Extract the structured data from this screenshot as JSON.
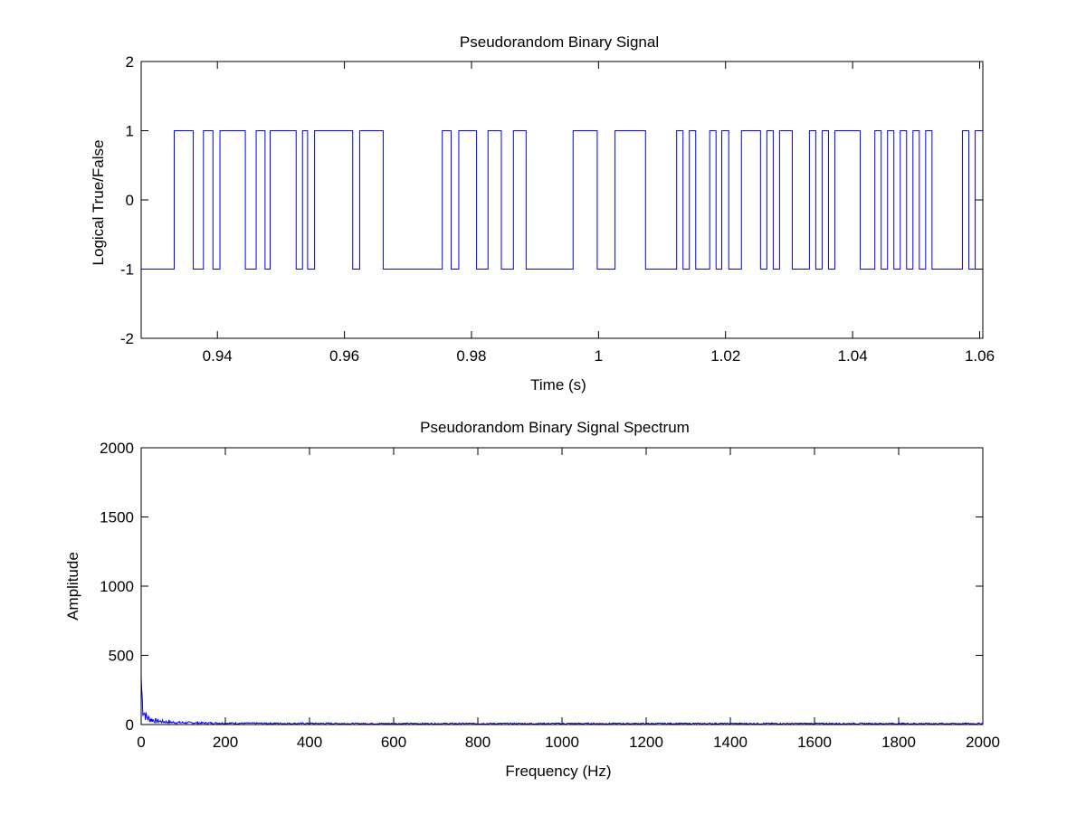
{
  "chart_data": [
    {
      "type": "line",
      "title": "Pseudorandom Binary Signal",
      "xlabel": "Time (s)",
      "ylabel": "Logical True/False",
      "xlim": [
        0.928,
        1.0605
      ],
      "ylim": [
        -2,
        2
      ],
      "xticks": [
        0.94,
        0.96,
        0.98,
        1,
        1.02,
        1.04,
        1.06
      ],
      "xtick_labels": [
        "0.94",
        "0.96",
        "0.98",
        "1",
        "1.02",
        "1.04",
        "1.06"
      ],
      "yticks": [
        -2,
        -1,
        0,
        1,
        2
      ],
      "ytick_labels": [
        "-2",
        "-1",
        "0",
        "1",
        "2"
      ],
      "line_color": "#0000ff",
      "series": [
        {
          "step": true,
          "initial_value": -1,
          "transitions": [
            [
              0.9332,
              1
            ],
            [
              0.9362,
              -1
            ],
            [
              0.9378,
              1
            ],
            [
              0.9393,
              -1
            ],
            [
              0.9404,
              1
            ],
            [
              0.9444,
              -1
            ],
            [
              0.9461,
              1
            ],
            [
              0.9475,
              -1
            ],
            [
              0.9483,
              1
            ],
            [
              0.9524,
              -1
            ],
            [
              0.9534,
              1
            ],
            [
              0.9542,
              -1
            ],
            [
              0.9553,
              1
            ],
            [
              0.9613,
              -1
            ],
            [
              0.9624,
              1
            ],
            [
              0.9661,
              -1
            ],
            [
              0.9754,
              1
            ],
            [
              0.9768,
              -1
            ],
            [
              0.978,
              1
            ],
            [
              0.9808,
              -1
            ],
            [
              0.9826,
              1
            ],
            [
              0.9847,
              -1
            ],
            [
              0.9866,
              1
            ],
            [
              0.9886,
              -1
            ],
            [
              0.996,
              1
            ],
            [
              0.9998,
              -1
            ],
            [
              1.0026,
              1
            ],
            [
              1.0074,
              -1
            ],
            [
              1.0123,
              1
            ],
            [
              1.0133,
              -1
            ],
            [
              1.0143,
              1
            ],
            [
              1.0153,
              -1
            ],
            [
              1.0175,
              1
            ],
            [
              1.0185,
              -1
            ],
            [
              1.0194,
              1
            ],
            [
              1.0205,
              -1
            ],
            [
              1.0225,
              1
            ],
            [
              1.0255,
              -1
            ],
            [
              1.0265,
              1
            ],
            [
              1.0275,
              -1
            ],
            [
              1.0285,
              1
            ],
            [
              1.0305,
              -1
            ],
            [
              1.0332,
              1
            ],
            [
              1.0342,
              -1
            ],
            [
              1.0352,
              1
            ],
            [
              1.0362,
              -1
            ],
            [
              1.0372,
              1
            ],
            [
              1.0412,
              -1
            ],
            [
              1.0435,
              1
            ],
            [
              1.0445,
              -1
            ],
            [
              1.0455,
              1
            ],
            [
              1.0465,
              -1
            ],
            [
              1.0475,
              1
            ],
            [
              1.0485,
              -1
            ],
            [
              1.0495,
              1
            ],
            [
              1.0505,
              -1
            ],
            [
              1.0515,
              1
            ],
            [
              1.0525,
              -1
            ],
            [
              1.0573,
              1
            ],
            [
              1.0583,
              -1
            ],
            [
              1.0593,
              1
            ]
          ]
        }
      ]
    },
    {
      "type": "line",
      "title": "Pseudorandom Binary Signal Spectrum",
      "xlabel": "Frequency (Hz)",
      "ylabel": "Amplitude",
      "xlim": [
        0,
        2000
      ],
      "ylim": [
        0,
        2000
      ],
      "xticks": [
        0,
        200,
        400,
        600,
        800,
        1000,
        1200,
        1400,
        1600,
        1800,
        2000
      ],
      "xtick_labels": [
        "0",
        "200",
        "400",
        "600",
        "800",
        "1000",
        "1200",
        "1400",
        "1600",
        "1800",
        "2000"
      ],
      "yticks": [
        0,
        500,
        1000,
        1500,
        2000
      ],
      "ytick_labels": [
        "0",
        "500",
        "1000",
        "1500",
        "2000"
      ],
      "line_color": "#0000ff",
      "series": [
        {
          "x": [
            0,
            1,
            2,
            3,
            4,
            6,
            8,
            10,
            12,
            15,
            18,
            22,
            26,
            30,
            35,
            40,
            45,
            50,
            55,
            60,
            70,
            80,
            90,
            100,
            120,
            140,
            160,
            180,
            200,
            250,
            300,
            350,
            400,
            450,
            500,
            600,
            700,
            800,
            900,
            1000,
            1100,
            1200,
            1300,
            1400,
            1500,
            1600,
            1700,
            1800,
            1900,
            2000
          ],
          "values": [
            350,
            300,
            240,
            180,
            140,
            110,
            90,
            75,
            65,
            55,
            48,
            42,
            38,
            34,
            30,
            28,
            26,
            24,
            22,
            21,
            19,
            17,
            16,
            15,
            14,
            13,
            12,
            12,
            11,
            10,
            10,
            9,
            9,
            9,
            8,
            8,
            8,
            8,
            8,
            8,
            8,
            8,
            8,
            8,
            8,
            8,
            8,
            8,
            8,
            8
          ]
        }
      ]
    }
  ]
}
